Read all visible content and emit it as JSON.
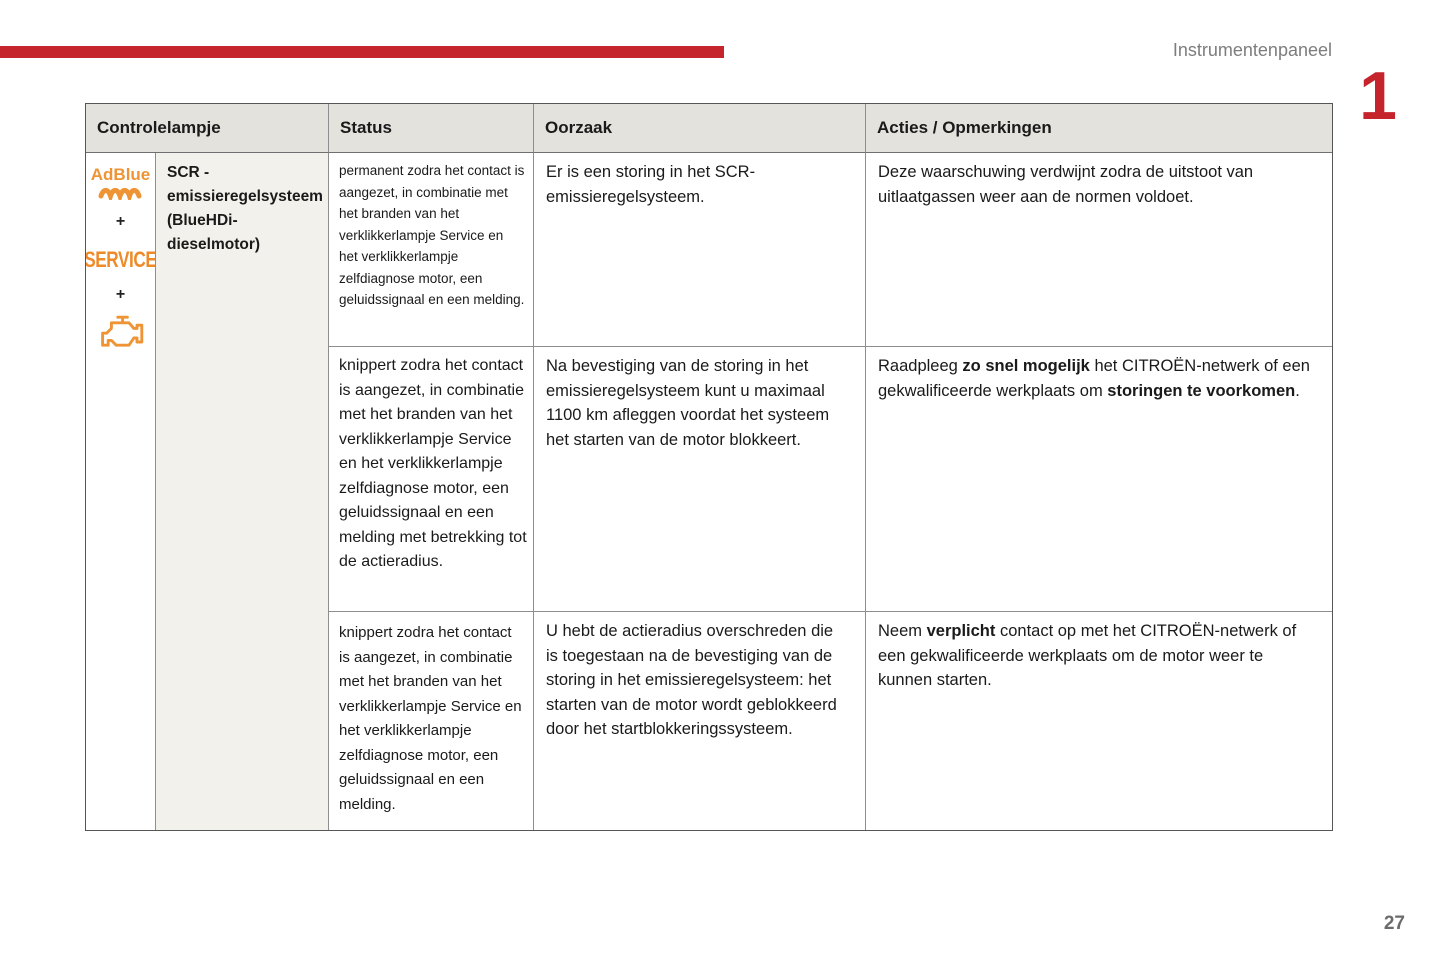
{
  "page": {
    "header_label": "Instrumentenpaneel",
    "chapter_number": "1",
    "page_number": "27"
  },
  "colors": {
    "accent_red": "#C5242C",
    "brand_orange": "#EE9435",
    "header_bg": "#E3E2DD",
    "label_bg": "#F2F1EC"
  },
  "table": {
    "headers": {
      "controlelampje": "Controlelampje",
      "status": "Status",
      "oorzaak": "Oorzaak",
      "acties": "Acties / Opmerkingen"
    },
    "indicator": {
      "adblue_label": "AdBlue",
      "adblue_wave_icon": "adblue-wave-icon",
      "plus_top": "+",
      "service_label": "SERVICE",
      "plus_bottom": "+",
      "engine_icon": "engine-warning-icon",
      "system_name": "SCR -\nemissieregelsysteem\n(BlueHDi-\ndieselmotor)"
    },
    "rows": [
      {
        "status": "permanent zodra het contact is aangezet, in combinatie met het branden van het verklikkerlampje Service en het verklikkerlampje zelfdiagnose motor, een geluidssignaal en een melding.",
        "oorzaak": "Er is een storing in het SCR-emissieregelsysteem.",
        "acties": [
          {
            "t": "Deze waarschuwing verdwijnt zodra de uitstoot van uitlaatgassen weer aan de normen voldoet."
          }
        ]
      },
      {
        "status": "knippert zodra het contact is aangezet, in combinatie met het branden van het verklikkerlampje Service en het verklikkerlampje zelfdiagnose motor, een geluidssignaal en een melding met betrekking tot de actieradius.",
        "oorzaak": "Na bevestiging van de storing in het emissieregelsysteem kunt u maximaal 1100 km afleggen voordat het systeem het starten van de motor blokkeert.",
        "acties": [
          {
            "t": "Raadpleeg "
          },
          {
            "t": "zo snel mogelijk",
            "b": true
          },
          {
            "t": " het CITROËN-netwerk of een gekwalificeerde werkplaats om "
          },
          {
            "t": "storingen te voorkomen",
            "b": true
          },
          {
            "t": "."
          }
        ]
      },
      {
        "status": "knippert zodra het contact is aangezet, in combinatie met het branden van het verklikkerlampje Service en het verklikkerlampje zelfdiagnose motor, een geluidssignaal en een melding.",
        "oorzaak": "U hebt de actieradius overschreden die is toegestaan na de bevestiging van de storing in het emissieregelsysteem: het starten van de motor wordt geblokkeerd door het startblokkeringssysteem.",
        "acties": [
          {
            "t": "Neem "
          },
          {
            "t": "verplicht",
            "b": true
          },
          {
            "t": " contact op met het CITROËN-netwerk of een gekwalificeerde werkplaats om de motor weer te kunnen starten."
          }
        ]
      }
    ]
  }
}
